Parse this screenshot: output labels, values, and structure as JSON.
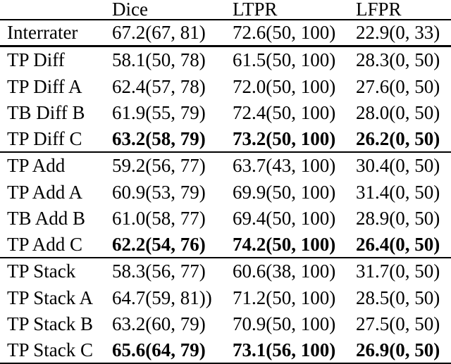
{
  "table": {
    "columns": [
      {
        "label": ""
      },
      {
        "label": "Dice"
      },
      {
        "label": "LTPR"
      },
      {
        "label": "LFPR"
      }
    ],
    "groups": [
      {
        "rows": [
          {
            "label": "Interrater",
            "dice": "67.2(67, 81)",
            "ltpr": "72.6(50, 100)",
            "lfpr": "22.9(0, 33)",
            "bold": false
          }
        ]
      },
      {
        "rows": [
          {
            "label": "TP Diff",
            "dice": "58.1(50, 78)",
            "ltpr": "61.5(50, 100)",
            "lfpr": "28.3(0, 50)",
            "bold": false
          },
          {
            "label": "TP Diff A",
            "dice": "62.4(57, 78)",
            "ltpr": "72.0(50, 100)",
            "lfpr": "27.6(0, 50)",
            "bold": false
          },
          {
            "label": "TB Diff B",
            "dice": "61.9(55, 79)",
            "ltpr": "72.4(50, 100)",
            "lfpr": "28.0(0, 50)",
            "bold": false
          },
          {
            "label": "TP Diff C",
            "dice": "63.2(58, 79)",
            "ltpr": "73.2(50, 100)",
            "lfpr": "26.2(0, 50)",
            "bold": true
          }
        ]
      },
      {
        "rows": [
          {
            "label": "TP Add",
            "dice": "59.2(56, 77)",
            "ltpr": "63.7(43, 100)",
            "lfpr": "30.4(0, 50)",
            "bold": false
          },
          {
            "label": "TP Add A",
            "dice": "60.9(53, 79)",
            "ltpr": "69.9(50, 100)",
            "lfpr": "31.4(0, 50)",
            "bold": false
          },
          {
            "label": "TB Add B",
            "dice": "61.0(58, 77)",
            "ltpr": "69.4(50, 100)",
            "lfpr": "28.9(0, 50)",
            "bold": false
          },
          {
            "label": "TP Add C",
            "dice": "62.2(54, 76)",
            "ltpr": "74.2(50, 100)",
            "lfpr": "26.4(0, 50)",
            "bold": true
          }
        ]
      },
      {
        "rows": [
          {
            "label": "TP Stack",
            "dice": "58.3(56, 77)",
            "ltpr": "60.6(38, 100)",
            "lfpr": "31.7(0, 50)",
            "bold": false
          },
          {
            "label": "TP Stack A",
            "dice": "64.7(59, 81))",
            "ltpr": "71.2(50, 100)",
            "lfpr": "28.5(0, 50)",
            "bold": false
          },
          {
            "label": "TP Stack B",
            "dice": "63.2(60, 79)",
            "ltpr": "70.9(50, 100)",
            "lfpr": "27.5(0, 50)",
            "bold": false
          },
          {
            "label": "TP Stack C",
            "dice": "65.6(64, 79)",
            "ltpr": "73.1(56, 100)",
            "lfpr": "26.9(0, 50)",
            "bold": true
          }
        ]
      }
    ],
    "text_color": "#000000",
    "background": "#ffffff"
  }
}
